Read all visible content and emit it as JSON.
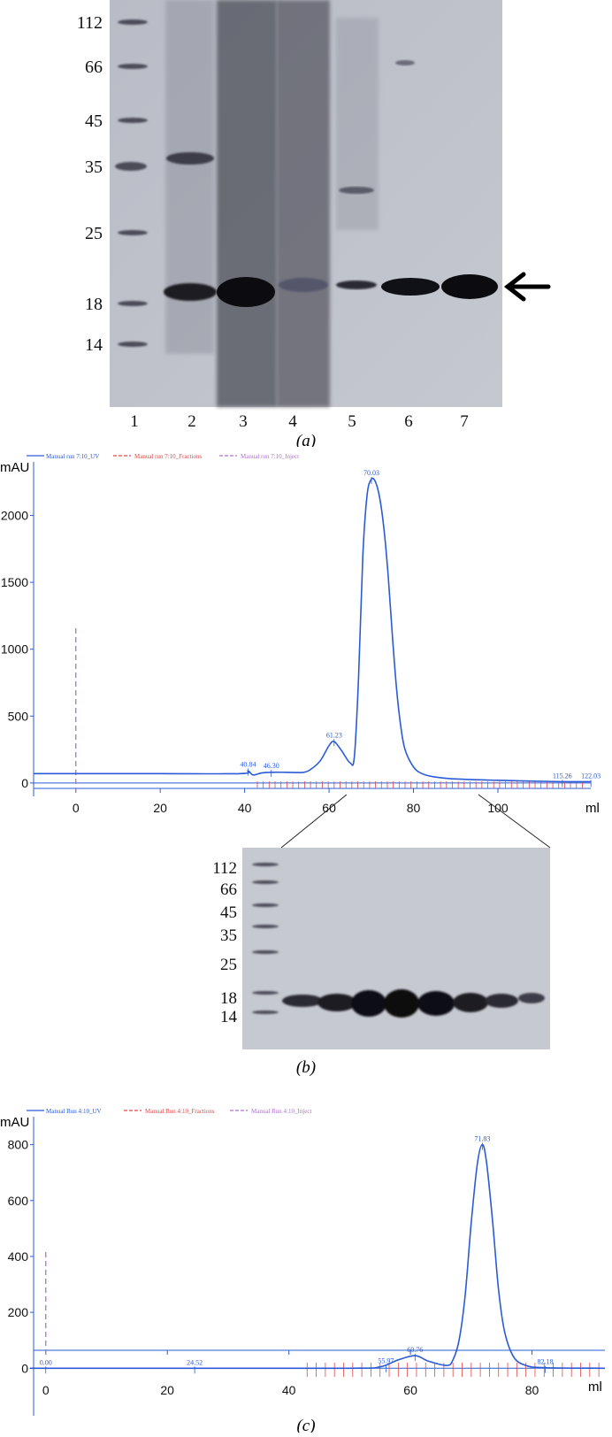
{
  "panel_a": {
    "caption": "(a)",
    "mw_markers": [
      "112",
      "66",
      "45",
      "35",
      "25",
      "18",
      "14"
    ],
    "lane_labels": [
      "1",
      "2",
      "3",
      "4",
      "5",
      "6",
      "7"
    ],
    "arrow_icon": "arrow-left-icon"
  },
  "panel_b": {
    "caption": "(b)",
    "legend": [
      "Manual run 7:10_UV",
      "Manual run 7:10_Fractions",
      "Manual run 7:10_Inject"
    ],
    "legend_colors": [
      "#2a5bd7",
      "#e04848",
      "#b070d0"
    ],
    "chart_data": {
      "type": "line",
      "ylabel": "mAU",
      "xlabel": "ml",
      "xlim": [
        -10,
        122
      ],
      "ylim": [
        -100,
        2400
      ],
      "x_ticks": [
        "0",
        "20",
        "40",
        "60",
        "80",
        "100"
      ],
      "y_ticks": [
        "0",
        "500",
        "1000",
        "1500",
        "2000"
      ],
      "peak_labels": [
        "40.84",
        "46.30",
        "61.23",
        "70.03",
        "115.26",
        "122.03"
      ],
      "series": [
        {
          "values_x": [
            -10,
            0,
            20,
            39,
            40.8,
            42,
            44,
            46.3,
            50,
            54,
            56,
            58,
            60,
            61.2,
            63,
            65,
            66,
            67,
            68,
            69,
            70,
            71,
            72,
            73,
            74,
            75,
            76,
            77,
            78,
            80,
            82,
            85,
            90,
            100,
            115,
            122
          ],
          "values_y": [
            70,
            70,
            70,
            70,
            90,
            60,
            75,
            80,
            80,
            80,
            110,
            170,
            280,
            310,
            240,
            150,
            200,
            800,
            1700,
            2150,
            2270,
            2250,
            2130,
            1900,
            1550,
            1100,
            700,
            420,
            250,
            120,
            70,
            45,
            30,
            20,
            10,
            10
          ]
        }
      ]
    },
    "inset_gel": {
      "mw_markers": [
        "112",
        "66",
        "45",
        "35",
        "25",
        "18",
        "14"
      ]
    }
  },
  "panel_c": {
    "caption": "(c)",
    "legend": [
      "Manual Run 4:10_UV",
      "Manual Run 4:10_Fractions",
      "Manual Run 4:10_Inject"
    ],
    "legend_colors": [
      "#2a5bd7",
      "#e04848",
      "#b070d0"
    ],
    "chart_data": {
      "type": "line",
      "ylabel": "mAU",
      "xlabel": "ml",
      "xlim": [
        -2,
        92
      ],
      "ylim": [
        -170,
        900
      ],
      "x_ticks": [
        "0",
        "20",
        "40",
        "60",
        "80"
      ],
      "y_ticks": [
        "0",
        "200",
        "400",
        "600",
        "800"
      ],
      "peak_labels": [
        "0.00",
        "24.52",
        "55.97",
        "60.76",
        "71.83",
        "82.18"
      ],
      "series": [
        {
          "values_x": [
            -2,
            0,
            24.5,
            50,
            55,
            58,
            60.8,
            63,
            66,
            67,
            68,
            69,
            70,
            71,
            71.8,
            72.5,
            73.5,
            74.5,
            75.5,
            77,
            79,
            82,
            92
          ],
          "values_y": [
            0,
            0,
            0,
            0,
            5,
            30,
            45,
            25,
            10,
            30,
            100,
            260,
            520,
            730,
            800,
            740,
            530,
            280,
            130,
            40,
            10,
            2,
            0
          ]
        }
      ]
    }
  }
}
